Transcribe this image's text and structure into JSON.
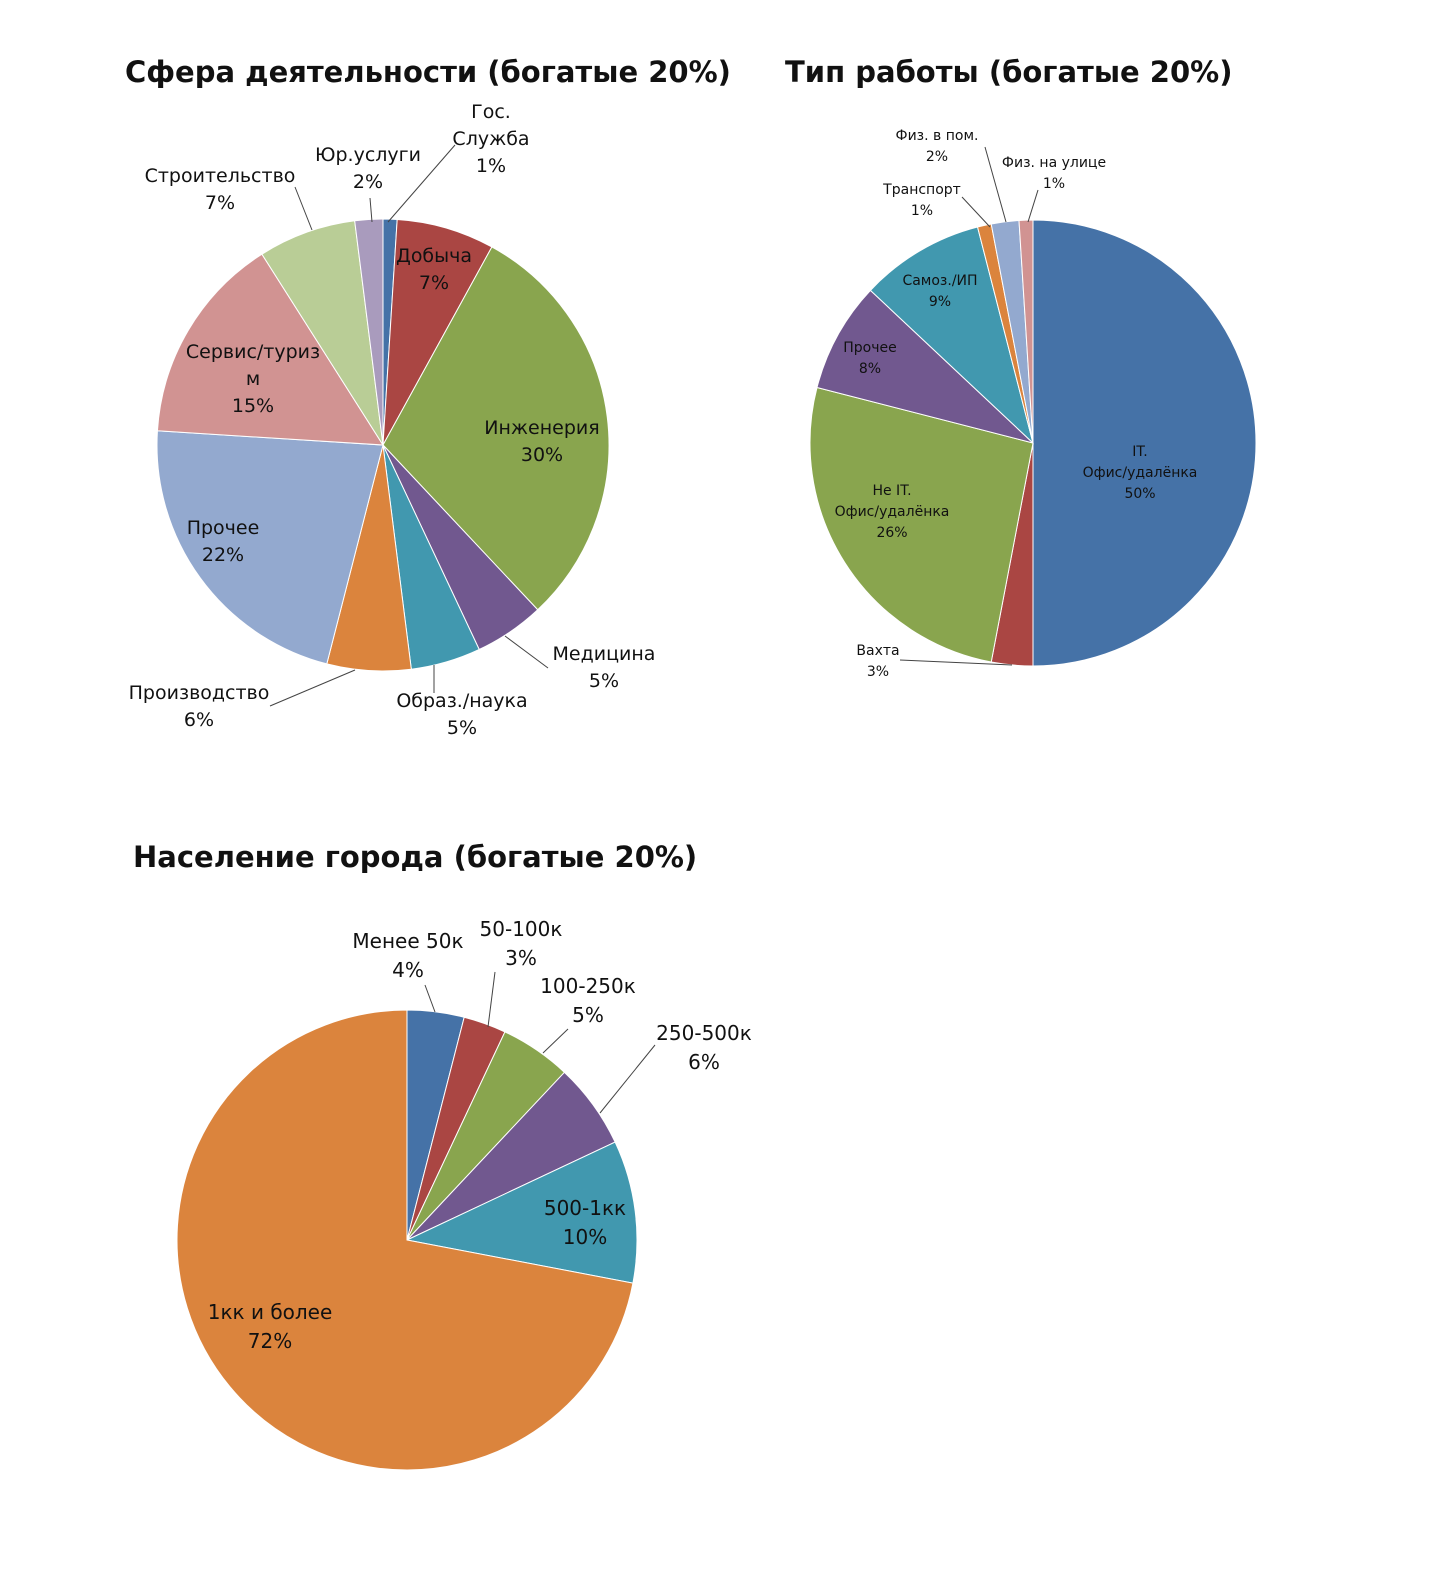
{
  "chart_data": [
    {
      "type": "pie",
      "title": "Сфера деятельности (богатые 20%)",
      "labels": [
        "Гос.\nСлужба",
        "Добыча",
        "Инженерия",
        "Медицина",
        "Образ./наука",
        "Производство",
        "Прочее",
        "Сервис/туриз\nм",
        "Строительство",
        "Юр.услуги"
      ],
      "values": [
        1,
        7,
        30,
        5,
        5,
        6,
        22,
        15,
        7,
        2
      ],
      "value_labels": [
        "1%",
        "7%",
        "30%",
        "5%",
        "5%",
        "6%",
        "22%",
        "15%",
        "7%",
        "2%"
      ],
      "colors": [
        "#4572A7",
        "#AA4643",
        "#89A54E",
        "#71588F",
        "#4198AF",
        "#DB843D",
        "#93A9CF",
        "#D19392",
        "#B9CD96",
        "#A99BBD"
      ]
    },
    {
      "type": "pie",
      "title": "Тип работы (богатые 20%)",
      "labels": [
        "IT.\nОфис/удалёнка",
        "Вахта",
        "Не IT.\nОфис/удалёнка",
        "Прочее",
        "Самоз./ИП",
        "Транспорт",
        "Физ. в пом.",
        "Физ. на улице"
      ],
      "values": [
        50,
        3,
        26,
        8,
        9,
        1,
        2,
        1
      ],
      "value_labels": [
        "50%",
        "3%",
        "26%",
        "8%",
        "9%",
        "1%",
        "2%",
        "1%"
      ],
      "colors": [
        "#4572A7",
        "#AA4643",
        "#89A54E",
        "#71588F",
        "#4198AF",
        "#DB843D",
        "#93A9CF",
        "#D19392"
      ]
    },
    {
      "type": "pie",
      "title": "Население города (богатые 20%)",
      "labels": [
        "Менее 50к",
        "50-100к",
        "100-250к",
        "250-500к",
        "500-1кк",
        "1кк и более"
      ],
      "values": [
        4,
        3,
        5,
        6,
        10,
        72
      ],
      "value_labels": [
        "4%",
        "3%",
        "5%",
        "6%",
        "10%",
        "72%"
      ],
      "colors": [
        "#4572A7",
        "#AA4643",
        "#89A54E",
        "#71588F",
        "#4198AF",
        "#DB843D"
      ]
    }
  ]
}
